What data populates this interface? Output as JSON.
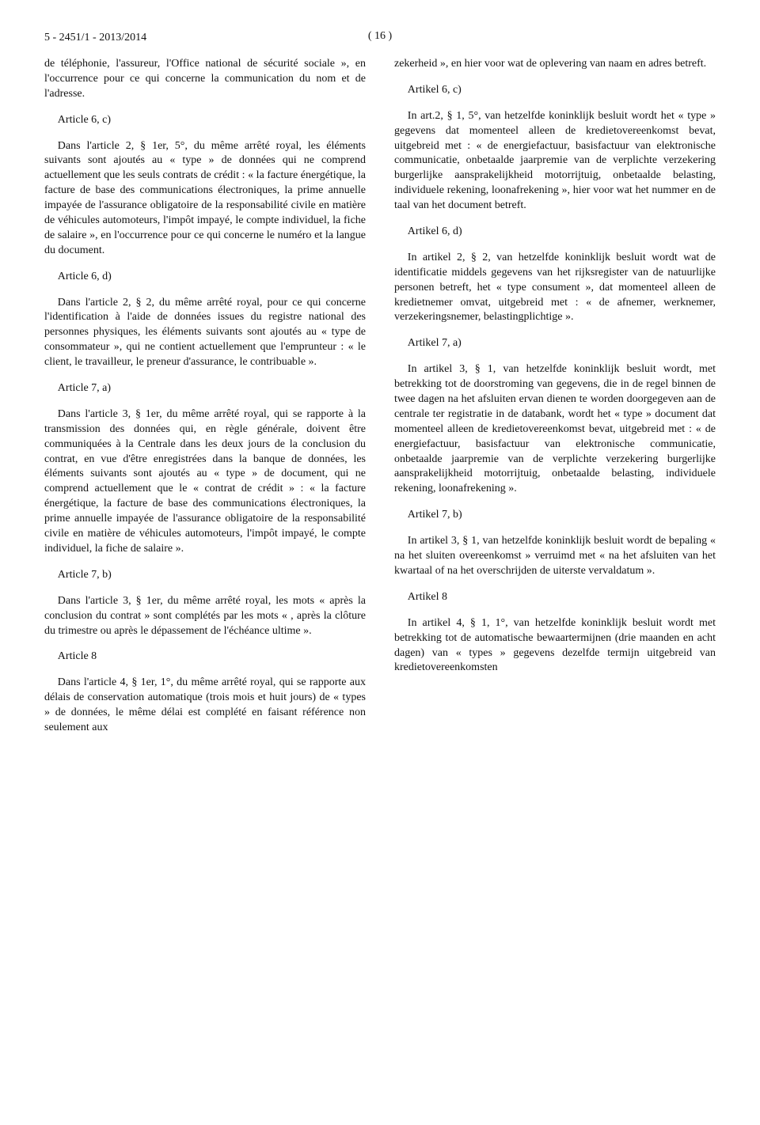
{
  "header": {
    "doc_ref": "5 - 2451/1 - 2013/2014",
    "page_num": "( 16 )"
  },
  "left": {
    "intro": "de téléphonie, l'assureur, l'Office national de sécurité sociale », en l'occurrence pour ce qui concerne la communication du nom et de l'adresse.",
    "a6c_label": "Article 6, c)",
    "a6c_body": "Dans l'article 2, § 1er, 5°, du même arrêté royal, les éléments suivants sont ajoutés au « type » de données qui ne comprend actuellement que les seuls contrats de crédit : « la facture énergétique, la facture de base des communications électroniques, la prime annuelle impayée de l'assurance obligatoire de la responsabilité civile en matière de véhicules automoteurs, l'impôt impayé, le compte individuel, la fiche de salaire », en l'occurrence pour ce qui concerne le numéro et la langue du document.",
    "a6d_label": "Article 6, d)",
    "a6d_body": "Dans l'article 2, § 2, du même arrêté royal, pour ce qui concerne l'identification à l'aide de données issues du registre national des personnes physiques, les éléments suivants sont ajoutés au « type de consommateur », qui ne contient actuellement que l'emprunteur : « le client, le travailleur, le preneur d'assurance, le contribuable ».",
    "a7a_label": "Article 7, a)",
    "a7a_body": "Dans l'article 3, § 1er, du même arrêté royal, qui se rapporte à la transmission des données qui, en règle générale, doivent être communiquées à la Centrale dans les deux jours de la conclusion du contrat, en vue d'être enregistrées dans la banque de données, les éléments suivants sont ajoutés au « type » de document, qui ne comprend actuellement que le « contrat de crédit » : « la facture énergétique, la facture de base des communications électroniques, la prime annuelle impayée de l'assurance obligatoire de la responsabilité civile en matière de véhicules automoteurs, l'impôt impayé, le compte individuel, la fiche de salaire ».",
    "a7b_label": "Article 7, b)",
    "a7b_body": "Dans l'article 3, § 1er, du même arrêté royal, les mots « après la conclusion du contrat » sont complétés par les mots « , après la clôture du trimestre ou après le dépassement de l'échéance ultime ».",
    "a8_label": "Article 8",
    "a8_body": "Dans l'article 4, § 1er, 1°, du même arrêté royal, qui se rapporte aux délais de conservation automatique (trois mois et huit jours) de « types » de données, le même délai est complété en faisant référence non seulement aux"
  },
  "right": {
    "intro": "zekerheid », en hier voor wat de oplevering van naam en adres betreft.",
    "a6c_label": "Artikel 6, c)",
    "a6c_body": "In art.2, § 1, 5°, van hetzelfde koninklijk besluit wordt het « type » gegevens dat momenteel alleen de kredietovereenkomst bevat, uitgebreid met : « de energiefactuur, basisfactuur van elektronische communicatie, onbetaalde jaarpremie van de verplichte verzekering burgerlijke aansprakelijkheid motorrijtuig, onbetaalde belasting, individuele rekening, loonafrekening », hier voor wat het nummer en de taal van het document betreft.",
    "a6d_label": "Artikel 6, d)",
    "a6d_body": "In artikel 2, § 2, van hetzelfde koninklijk besluit wordt wat de identificatie middels gegevens van het rijksregister van de natuurlijke personen betreft, het « type consument », dat momenteel alleen de kredietnemer omvat, uitgebreid met : « de afnemer, werknemer, verzekeringsnemer, belastingplichtige ».",
    "a7a_label": "Artikel 7, a)",
    "a7a_body": "In artikel 3, § 1, van hetzelfde koninklijk besluit wordt, met betrekking tot de doorstroming van gegevens, die in de regel binnen de twee dagen na het afsluiten ervan dienen te worden doorgegeven aan de centrale ter registratie in de databank, wordt het « type » document dat momenteel alleen de kredietovereenkomst bevat, uitgebreid met : « de energiefactuur, basisfactuur van elektronische communicatie, onbetaalde jaarpremie van de verplichte verzekering burgerlijke aansprakelijkheid motorrijtuig, onbetaalde belasting, individuele rekening, loonafrekening ».",
    "a7b_label": "Artikel 7, b)",
    "a7b_body": "In artikel 3, § 1, van hetzelfde koninklijk besluit wordt de bepaling « na het sluiten overeenkomst » verruimd met « na het afsluiten van het kwartaal of na het overschrijden de uiterste vervaldatum ».",
    "a8_label": "Artikel 8",
    "a8_body": "In artikel 4, § 1, 1°, van hetzelfde koninklijk besluit wordt met betrekking tot de automatische bewaartermijnen (drie maanden en acht dagen) van « types » gegevens dezelfde termijn uitgebreid van kredietovereenkomsten"
  }
}
